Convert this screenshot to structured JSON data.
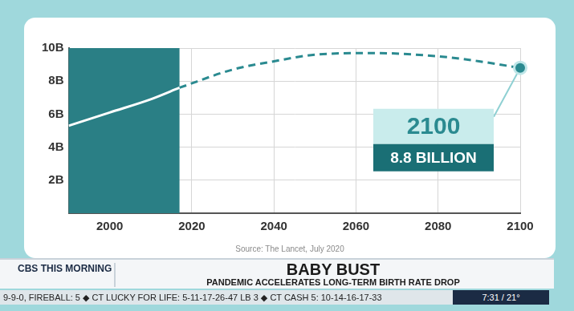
{
  "chart_data": {
    "type": "line",
    "xlim": [
      1990,
      2100
    ],
    "xticks": [
      2000,
      2020,
      2040,
      2060,
      2080,
      2100
    ],
    "ylim": [
      0,
      10
    ],
    "yticks": [
      {
        "value": 2,
        "label": "2B"
      },
      {
        "value": 4,
        "label": "4B"
      },
      {
        "value": 6,
        "label": "6B"
      },
      {
        "value": 8,
        "label": "8B"
      },
      {
        "value": 10,
        "label": "10B"
      }
    ],
    "grid": true,
    "highlight_xlim": [
      1990,
      2017
    ],
    "series": [
      {
        "color": "#ffffff",
        "line_style": "solid",
        "x": [
          1990,
          2000,
          2010,
          2017
        ],
        "values": [
          5.3,
          6.1,
          6.9,
          7.6
        ]
      },
      {
        "color": "#2a8a90",
        "line_style": "dashed",
        "x": [
          2017,
          2030,
          2040,
          2050,
          2064,
          2080,
          2090,
          2100
        ],
        "values": [
          7.6,
          8.7,
          9.2,
          9.6,
          9.7,
          9.5,
          9.2,
          8.8
        ]
      }
    ],
    "annotation": {
      "x": 2100,
      "y": 8.8,
      "title": "2100",
      "text": "8.8 BILLION"
    },
    "source": "Source: The Lancet, July 2020"
  },
  "broadcast": {
    "logo": "CBS THIS MORNING",
    "headline": "BABY BUST",
    "subheadline": "PANDEMIC ACCELERATES LONG-TERM BIRTH RATE DROP",
    "ticker": "9-9-0, FIREBALL: 5 ◆ CT LUCKY FOR LIFE: 5-11-17-26-47 LB 3 ◆ CT CASH 5: 10-14-16-17-33",
    "time": "7:31 / 21°"
  }
}
